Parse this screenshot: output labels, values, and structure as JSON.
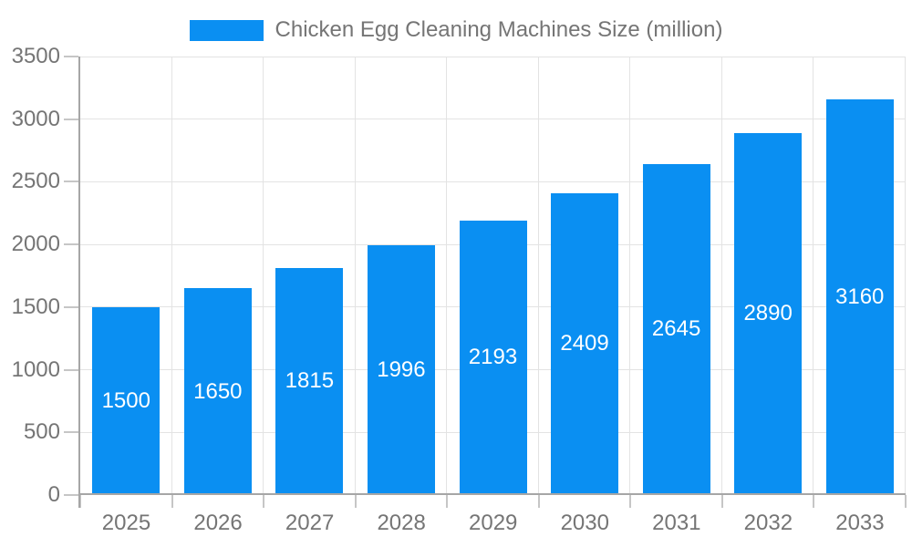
{
  "chart_data": {
    "type": "bar",
    "title": "Chicken Egg Cleaning Machines Size (million)",
    "legend": "Chicken Egg Cleaning Machines Size (million)",
    "legend_position": "top-center",
    "categories": [
      "2025",
      "2026",
      "2027",
      "2028",
      "2029",
      "2030",
      "2031",
      "2032",
      "2033"
    ],
    "values": [
      1500,
      1650,
      1815,
      1996,
      2193,
      2409,
      2645,
      2890,
      3160
    ],
    "xlabel": "",
    "ylabel": "",
    "ylim": [
      0,
      3500
    ],
    "ytick_step": 500,
    "grid": true,
    "colors": {
      "bar": "#0a8ff2",
      "bar_label_text": "#ffffff",
      "axis_text": "#757575",
      "legend_text": "#757575",
      "grid_line": "#e3e3e3",
      "axis_line": "#a6a6a6",
      "tick_line": "#c6c6c6",
      "background": "#ffffff"
    }
  }
}
